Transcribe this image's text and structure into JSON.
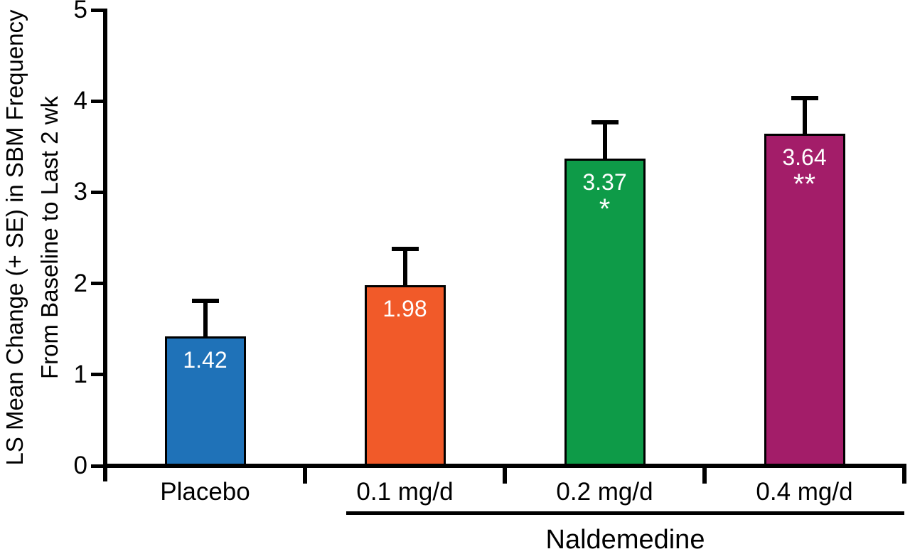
{
  "y_axis": {
    "label_line1": "LS Mean Change (+ SE) in SBM Frequency",
    "label_line2": "From Baseline to Last 2 wk"
  },
  "chart_data": {
    "type": "bar",
    "categories": [
      "Placebo",
      "0.1 mg/d",
      "0.2 mg/d",
      "0.4 mg/d"
    ],
    "values": [
      1.42,
      1.98,
      3.37,
      3.64
    ],
    "value_labels": [
      "1.42",
      "1.98",
      "3.37",
      "3.64"
    ],
    "significance_markers": [
      "",
      "",
      "*",
      "**"
    ],
    "upper_errors": [
      0.41,
      0.42,
      0.42,
      0.42
    ],
    "bar_colors": [
      "#1F72B8",
      "#F15A29",
      "#0E9B48",
      "#A31D69"
    ],
    "value_label_color": "#FFFFFF",
    "axis_color": "#000000",
    "title": "",
    "xlabel": "",
    "ylabel": "LS Mean Change (+ SE) in SBM Frequency From Baseline to Last 2 wk",
    "ylim": [
      0,
      5
    ],
    "yticks": [
      0,
      1,
      2,
      3,
      4,
      5
    ],
    "grid": false,
    "legend": "none",
    "group_annotation": {
      "label": "Naldemedine",
      "covers_categories": [
        "0.1 mg/d",
        "0.2 mg/d",
        "0.4 mg/d"
      ]
    }
  }
}
